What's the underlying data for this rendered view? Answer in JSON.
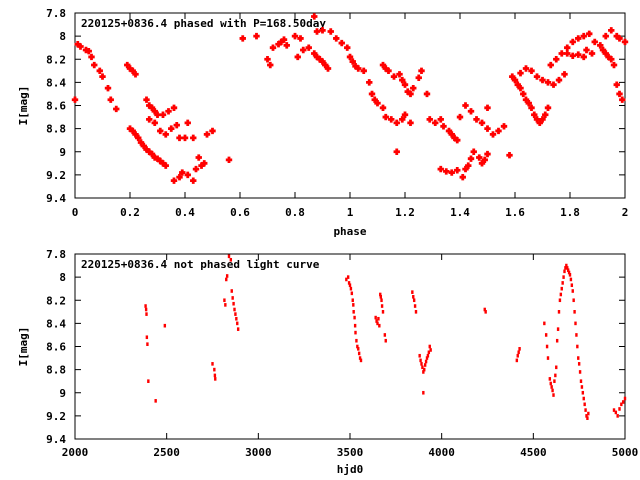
{
  "colors": {
    "points": "#ff0000",
    "axes": "#000000",
    "background": "#ffffff"
  },
  "chart_data": [
    {
      "type": "scatter",
      "title": "220125+0836.4 phased with P=168.50day",
      "xlabel": "phase",
      "ylabel": "I[mag]",
      "xlim": [
        0,
        2
      ],
      "ylim": [
        9.4,
        7.8
      ],
      "y_inverted": true,
      "grid": false,
      "xticks": [
        "0",
        "0.2",
        "0.4",
        "0.6",
        "0.8",
        "1",
        "1.2",
        "1.4",
        "1.6",
        "1.8",
        "2"
      ],
      "yticks": [
        "7.8",
        "8",
        "8.2",
        "8.4",
        "8.6",
        "8.8",
        "9",
        "9.2",
        "9.4"
      ],
      "marker": "cross",
      "points": [
        [
          0.0,
          8.55
        ],
        [
          0.01,
          8.07
        ],
        [
          0.02,
          8.09
        ],
        [
          0.04,
          8.12
        ],
        [
          0.05,
          8.13
        ],
        [
          0.06,
          8.18
        ],
        [
          0.07,
          8.25
        ],
        [
          0.09,
          8.3
        ],
        [
          0.1,
          8.35
        ],
        [
          0.12,
          8.45
        ],
        [
          0.13,
          8.55
        ],
        [
          0.15,
          8.63
        ],
        [
          0.19,
          8.25
        ],
        [
          0.2,
          8.28
        ],
        [
          0.21,
          8.3
        ],
        [
          0.22,
          8.33
        ],
        [
          0.2,
          8.8
        ],
        [
          0.21,
          8.82
        ],
        [
          0.22,
          8.85
        ],
        [
          0.23,
          8.88
        ],
        [
          0.24,
          8.92
        ],
        [
          0.25,
          8.95
        ],
        [
          0.26,
          8.98
        ],
        [
          0.27,
          9.0
        ],
        [
          0.28,
          9.02
        ],
        [
          0.29,
          9.05
        ],
        [
          0.3,
          9.06
        ],
        [
          0.31,
          9.08
        ],
        [
          0.32,
          9.1
        ],
        [
          0.33,
          9.12
        ],
        [
          0.26,
          8.55
        ],
        [
          0.27,
          8.6
        ],
        [
          0.28,
          8.62
        ],
        [
          0.29,
          8.65
        ],
        [
          0.3,
          8.68
        ],
        [
          0.32,
          8.68
        ],
        [
          0.34,
          8.65
        ],
        [
          0.36,
          8.62
        ],
        [
          0.27,
          8.72
        ],
        [
          0.29,
          8.75
        ],
        [
          0.31,
          8.82
        ],
        [
          0.33,
          8.85
        ],
        [
          0.35,
          8.8
        ],
        [
          0.37,
          8.77
        ],
        [
          0.38,
          8.88
        ],
        [
          0.4,
          8.88
        ],
        [
          0.41,
          8.75
        ],
        [
          0.43,
          8.88
        ],
        [
          0.45,
          9.05
        ],
        [
          0.47,
          9.1
        ],
        [
          0.48,
          8.85
        ],
        [
          0.5,
          8.82
        ],
        [
          0.36,
          9.25
        ],
        [
          0.38,
          9.22
        ],
        [
          0.39,
          9.18
        ],
        [
          0.41,
          9.2
        ],
        [
          0.43,
          9.25
        ],
        [
          0.44,
          9.15
        ],
        [
          0.46,
          9.12
        ],
        [
          0.56,
          9.07
        ],
        [
          0.61,
          8.02
        ],
        [
          0.66,
          8.0
        ],
        [
          0.7,
          8.2
        ],
        [
          0.71,
          8.25
        ],
        [
          0.72,
          8.1
        ],
        [
          0.74,
          8.07
        ],
        [
          0.75,
          8.05
        ],
        [
          0.76,
          8.03
        ],
        [
          0.77,
          8.08
        ],
        [
          0.8,
          8.0
        ],
        [
          0.82,
          8.02
        ],
        [
          0.81,
          8.18
        ],
        [
          0.83,
          8.12
        ],
        [
          0.85,
          8.1
        ],
        [
          0.87,
          8.15
        ],
        [
          0.88,
          8.18
        ],
        [
          0.89,
          8.2
        ],
        [
          0.9,
          8.22
        ],
        [
          0.91,
          8.25
        ],
        [
          0.92,
          8.28
        ],
        [
          0.87,
          7.83
        ],
        [
          0.88,
          7.96
        ],
        [
          0.9,
          7.95
        ],
        [
          0.93,
          7.96
        ],
        [
          0.95,
          8.02
        ],
        [
          0.97,
          8.06
        ],
        [
          0.99,
          8.1
        ],
        [
          1.0,
          8.18
        ],
        [
          1.01,
          8.22
        ],
        [
          1.02,
          8.26
        ],
        [
          1.03,
          8.28
        ],
        [
          1.05,
          8.3
        ],
        [
          1.07,
          8.4
        ],
        [
          1.08,
          8.5
        ],
        [
          1.09,
          8.55
        ],
        [
          1.1,
          8.58
        ],
        [
          1.12,
          8.62
        ],
        [
          1.13,
          8.7
        ],
        [
          1.15,
          8.72
        ],
        [
          1.17,
          8.75
        ],
        [
          1.19,
          8.72
        ],
        [
          1.2,
          8.68
        ],
        [
          1.22,
          8.75
        ],
        [
          1.12,
          8.25
        ],
        [
          1.13,
          8.28
        ],
        [
          1.14,
          8.3
        ],
        [
          1.16,
          8.35
        ],
        [
          1.18,
          8.33
        ],
        [
          1.19,
          8.38
        ],
        [
          1.2,
          8.42
        ],
        [
          1.21,
          8.48
        ],
        [
          1.22,
          8.5
        ],
        [
          1.23,
          8.45
        ],
        [
          1.25,
          8.36
        ],
        [
          1.26,
          8.3
        ],
        [
          1.17,
          9.0
        ],
        [
          1.28,
          8.5
        ],
        [
          1.29,
          8.72
        ],
        [
          1.31,
          8.75
        ],
        [
          1.33,
          8.72
        ],
        [
          1.34,
          8.78
        ],
        [
          1.36,
          8.82
        ],
        [
          1.37,
          8.85
        ],
        [
          1.38,
          8.88
        ],
        [
          1.39,
          8.9
        ],
        [
          1.33,
          9.15
        ],
        [
          1.35,
          9.17
        ],
        [
          1.37,
          9.18
        ],
        [
          1.39,
          9.16
        ],
        [
          1.41,
          9.22
        ],
        [
          1.42,
          9.15
        ],
        [
          1.43,
          9.12
        ],
        [
          1.44,
          9.06
        ],
        [
          1.45,
          9.0
        ],
        [
          1.47,
          9.05
        ],
        [
          1.48,
          9.1
        ],
        [
          1.49,
          9.07
        ],
        [
          1.5,
          9.02
        ],
        [
          1.4,
          8.7
        ],
        [
          1.42,
          8.6
        ],
        [
          1.44,
          8.65
        ],
        [
          1.46,
          8.72
        ],
        [
          1.48,
          8.75
        ],
        [
          1.5,
          8.8
        ],
        [
          1.52,
          8.85
        ],
        [
          1.54,
          8.82
        ],
        [
          1.56,
          8.78
        ],
        [
          1.5,
          8.62
        ],
        [
          1.58,
          9.03
        ],
        [
          1.59,
          8.35
        ],
        [
          1.6,
          8.38
        ],
        [
          1.61,
          8.42
        ],
        [
          1.62,
          8.45
        ],
        [
          1.63,
          8.5
        ],
        [
          1.64,
          8.55
        ],
        [
          1.65,
          8.58
        ],
        [
          1.66,
          8.62
        ],
        [
          1.67,
          8.68
        ],
        [
          1.68,
          8.72
        ],
        [
          1.69,
          8.75
        ],
        [
          1.7,
          8.72
        ],
        [
          1.71,
          8.68
        ],
        [
          1.72,
          8.62
        ],
        [
          1.62,
          8.32
        ],
        [
          1.64,
          8.28
        ],
        [
          1.66,
          8.3
        ],
        [
          1.68,
          8.35
        ],
        [
          1.7,
          8.38
        ],
        [
          1.72,
          8.4
        ],
        [
          1.74,
          8.42
        ],
        [
          1.76,
          8.38
        ],
        [
          1.78,
          8.33
        ],
        [
          1.73,
          8.25
        ],
        [
          1.75,
          8.2
        ],
        [
          1.77,
          8.15
        ],
        [
          1.79,
          8.1
        ],
        [
          1.81,
          8.05
        ],
        [
          1.83,
          8.02
        ],
        [
          1.85,
          8.0
        ],
        [
          1.87,
          7.98
        ],
        [
          1.86,
          8.12
        ],
        [
          1.88,
          8.15
        ],
        [
          1.89,
          8.05
        ],
        [
          1.91,
          8.08
        ],
        [
          1.92,
          8.12
        ],
        [
          1.93,
          8.15
        ],
        [
          1.94,
          8.18
        ],
        [
          1.95,
          8.2
        ],
        [
          1.96,
          8.25
        ],
        [
          1.97,
          8.0
        ],
        [
          1.98,
          8.02
        ],
        [
          2.0,
          8.05
        ],
        [
          1.79,
          8.15
        ],
        [
          1.81,
          8.17
        ],
        [
          1.83,
          8.16
        ],
        [
          1.85,
          8.18
        ],
        [
          1.97,
          8.42
        ],
        [
          1.98,
          8.5
        ],
        [
          1.99,
          8.55
        ],
        [
          1.95,
          7.95
        ],
        [
          1.93,
          8.0
        ]
      ]
    },
    {
      "type": "scatter",
      "title": "220125+0836.4 not phased light curve",
      "xlabel": "hjd0",
      "ylabel": "I[mag]",
      "xlim": [
        2000,
        5000
      ],
      "ylim": [
        9.4,
        7.8
      ],
      "y_inverted": true,
      "grid": false,
      "xticks": [
        "2000",
        "2500",
        "3000",
        "3500",
        "4000",
        "4500",
        "5000"
      ],
      "yticks": [
        "7.8",
        "8",
        "8.2",
        "8.4",
        "8.6",
        "8.8",
        "9",
        "9.2",
        "9.4"
      ],
      "marker": "dot",
      "points": [
        [
          2385,
          8.25
        ],
        [
          2388,
          8.28
        ],
        [
          2390,
          8.32
        ],
        [
          2392,
          8.52
        ],
        [
          2395,
          8.58
        ],
        [
          2400,
          8.9
        ],
        [
          2440,
          9.07
        ],
        [
          2490,
          8.42
        ],
        [
          2750,
          8.75
        ],
        [
          2760,
          8.8
        ],
        [
          2763,
          8.85
        ],
        [
          2765,
          8.88
        ],
        [
          2815,
          8.2
        ],
        [
          2820,
          8.24
        ],
        [
          2825,
          8.02
        ],
        [
          2830,
          7.99
        ],
        [
          2840,
          7.82
        ],
        [
          2850,
          7.85
        ],
        [
          2855,
          8.12
        ],
        [
          2860,
          8.18
        ],
        [
          2865,
          8.23
        ],
        [
          2870,
          8.28
        ],
        [
          2875,
          8.32
        ],
        [
          2880,
          8.36
        ],
        [
          2885,
          8.4
        ],
        [
          2890,
          8.45
        ],
        [
          3480,
          8.02
        ],
        [
          3490,
          8.0
        ],
        [
          3495,
          8.05
        ],
        [
          3500,
          8.07
        ],
        [
          3505,
          8.1
        ],
        [
          3510,
          8.14
        ],
        [
          3515,
          8.2
        ],
        [
          3518,
          8.24
        ],
        [
          3520,
          8.3
        ],
        [
          3525,
          8.35
        ],
        [
          3528,
          8.42
        ],
        [
          3530,
          8.48
        ],
        [
          3535,
          8.55
        ],
        [
          3540,
          8.6
        ],
        [
          3545,
          8.62
        ],
        [
          3550,
          8.66
        ],
        [
          3555,
          8.7
        ],
        [
          3560,
          8.72
        ],
        [
          3640,
          8.35
        ],
        [
          3645,
          8.38
        ],
        [
          3650,
          8.4
        ],
        [
          3655,
          8.36
        ],
        [
          3660,
          8.42
        ],
        [
          3665,
          8.15
        ],
        [
          3668,
          8.17
        ],
        [
          3672,
          8.2
        ],
        [
          3675,
          8.25
        ],
        [
          3680,
          8.3
        ],
        [
          3690,
          8.5
        ],
        [
          3695,
          8.55
        ],
        [
          3840,
          8.13
        ],
        [
          3845,
          8.17
        ],
        [
          3850,
          8.2
        ],
        [
          3855,
          8.25
        ],
        [
          3860,
          8.3
        ],
        [
          3880,
          8.68
        ],
        [
          3885,
          8.72
        ],
        [
          3890,
          8.75
        ],
        [
          3895,
          8.78
        ],
        [
          3900,
          8.82
        ],
        [
          3905,
          8.8
        ],
        [
          3910,
          8.76
        ],
        [
          3915,
          8.73
        ],
        [
          3920,
          8.7
        ],
        [
          3925,
          8.68
        ],
        [
          3930,
          8.65
        ],
        [
          3935,
          8.6
        ],
        [
          3940,
          8.63
        ],
        [
          3900,
          9.0
        ],
        [
          4235,
          8.28
        ],
        [
          4240,
          8.3
        ],
        [
          4410,
          8.72
        ],
        [
          4415,
          8.68
        ],
        [
          4420,
          8.65
        ],
        [
          4425,
          8.62
        ],
        [
          4560,
          8.4
        ],
        [
          4570,
          8.5
        ],
        [
          4575,
          8.6
        ],
        [
          4580,
          8.7
        ],
        [
          4590,
          8.88
        ],
        [
          4595,
          8.92
        ],
        [
          4600,
          8.95
        ],
        [
          4605,
          8.98
        ],
        [
          4610,
          9.02
        ],
        [
          4615,
          8.9
        ],
        [
          4620,
          8.85
        ],
        [
          4625,
          8.78
        ],
        [
          4630,
          8.55
        ],
        [
          4635,
          8.45
        ],
        [
          4640,
          8.3
        ],
        [
          4645,
          8.2
        ],
        [
          4650,
          8.15
        ],
        [
          4655,
          8.1
        ],
        [
          4660,
          8.05
        ],
        [
          4665,
          8.0
        ],
        [
          4670,
          7.95
        ],
        [
          4675,
          7.92
        ],
        [
          4680,
          7.9
        ],
        [
          4685,
          7.92
        ],
        [
          4690,
          7.94
        ],
        [
          4695,
          7.96
        ],
        [
          4700,
          7.98
        ],
        [
          4705,
          8.02
        ],
        [
          4710,
          8.07
        ],
        [
          4715,
          8.12
        ],
        [
          4720,
          8.2
        ],
        [
          4725,
          8.3
        ],
        [
          4730,
          8.4
        ],
        [
          4735,
          8.5
        ],
        [
          4740,
          8.6
        ],
        [
          4745,
          8.7
        ],
        [
          4750,
          8.75
        ],
        [
          4755,
          8.82
        ],
        [
          4760,
          8.9
        ],
        [
          4765,
          8.95
        ],
        [
          4770,
          9.0
        ],
        [
          4775,
          9.05
        ],
        [
          4780,
          9.1
        ],
        [
          4785,
          9.15
        ],
        [
          4790,
          9.2
        ],
        [
          4795,
          9.22
        ],
        [
          4800,
          9.18
        ],
        [
          4940,
          9.15
        ],
        [
          4950,
          9.17
        ],
        [
          4960,
          9.2
        ],
        [
          4970,
          9.14
        ],
        [
          4980,
          9.1
        ],
        [
          4990,
          9.08
        ],
        [
          5000,
          9.05
        ]
      ]
    }
  ]
}
